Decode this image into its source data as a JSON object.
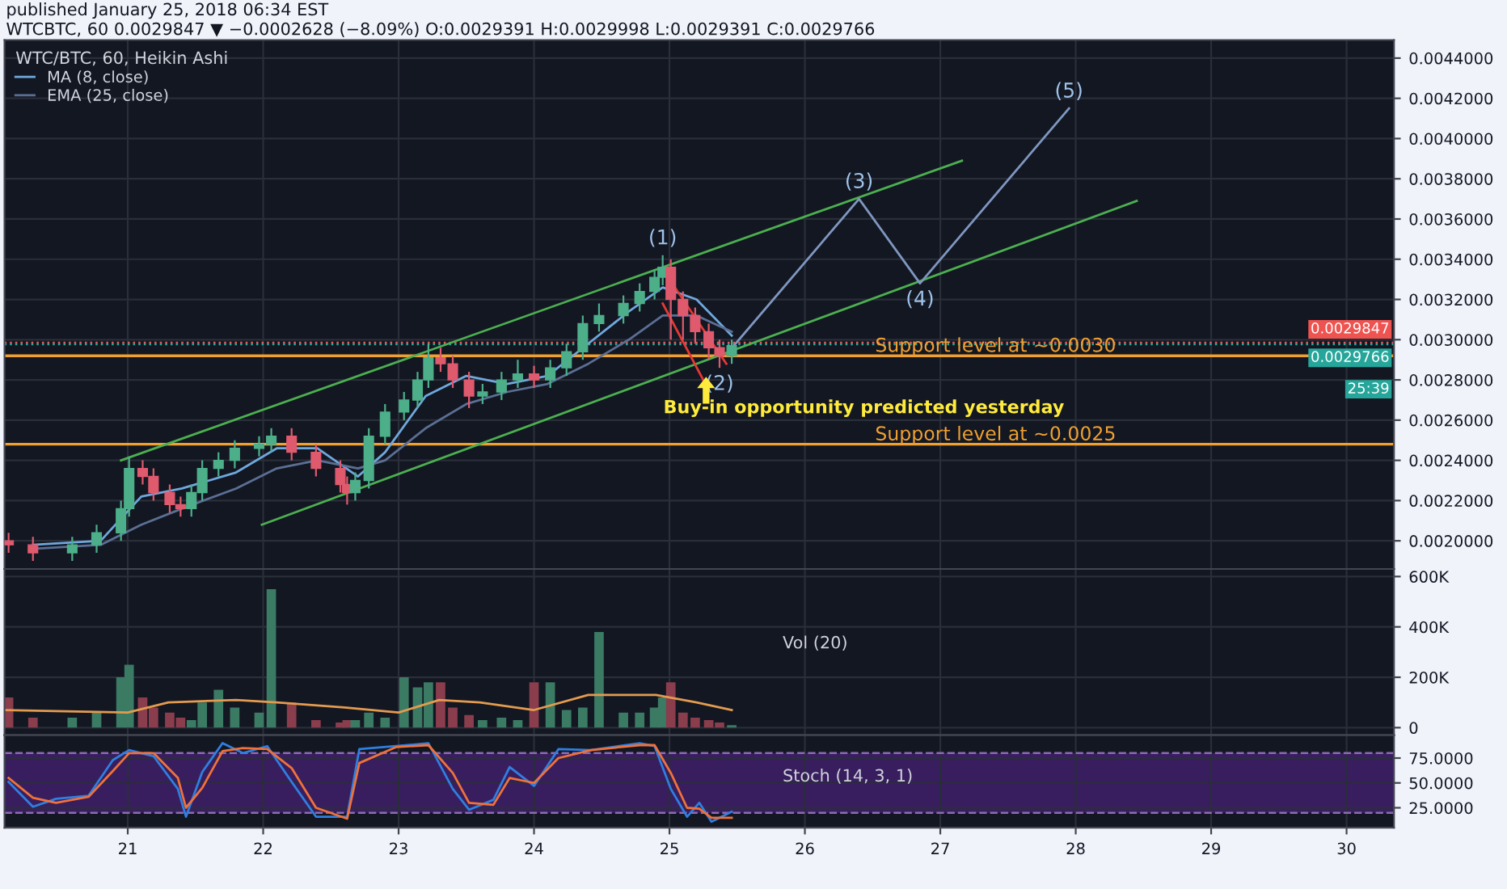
{
  "chart_data": [
    {
      "type": "candlestick",
      "title": "WTCBTC, 60 0.0029847 ▼ −0.0002628 (−8.09%) O:0.0029391 H:0.0029998 L:0.0029391 C:0.0029766",
      "subtitle": "published January 25, 2018 06:34 EST",
      "legend_title": "WTC/BTC, 60, Heikin Ashi",
      "legend": "top left",
      "grid": true,
      "tick_labels": "y",
      "xlim": [
        20.09,
        30.35
      ],
      "xticks": [
        21,
        22,
        23,
        24,
        25,
        26,
        27,
        28,
        29,
        30
      ],
      "ylim": [
        0.00186,
        0.00449
      ],
      "yticks": [
        {
          "value": 0.002,
          "label": "0.0020000"
        },
        {
          "value": 0.0022,
          "label": "0.0022000"
        },
        {
          "value": 0.0024,
          "label": "0.0024000"
        },
        {
          "value": 0.0026,
          "label": "0.0026000"
        },
        {
          "value": 0.0028,
          "label": "0.0028000"
        },
        {
          "value": 0.003,
          "label": "0.0030000"
        },
        {
          "value": 0.0032,
          "label": "0.0032000"
        },
        {
          "value": 0.0034,
          "label": "0.0034000"
        },
        {
          "value": 0.0036,
          "label": "0.0036000"
        },
        {
          "value": 0.0038,
          "label": "0.0038000"
        },
        {
          "value": 0.004,
          "label": "0.0040000"
        },
        {
          "value": 0.0042,
          "label": "0.0042000"
        },
        {
          "value": 0.0044,
          "label": "0.0044000"
        }
      ],
      "x": [
        20.12,
        20.3,
        20.59,
        20.77,
        20.95,
        21.01,
        21.11,
        21.19,
        21.31,
        21.39,
        21.47,
        21.55,
        21.67,
        21.79,
        21.97,
        22.06,
        22.21,
        22.39,
        22.57,
        22.62,
        22.68,
        22.78,
        22.9,
        23.04,
        23.14,
        23.22,
        23.31,
        23.4,
        23.52,
        23.62,
        23.76,
        23.88,
        24.0,
        24.12,
        24.24,
        24.36,
        24.48,
        24.66,
        24.78,
        24.89,
        24.95,
        25.01,
        25.1,
        25.19,
        25.29,
        25.37,
        25.46
      ],
      "ohlc": [
        [
          0.002,
          0.00204,
          0.00194,
          0.00198
        ],
        [
          0.00198,
          0.00202,
          0.0019,
          0.00194
        ],
        [
          0.00194,
          0.00202,
          0.0019,
          0.00198
        ],
        [
          0.00198,
          0.00208,
          0.00194,
          0.00204
        ],
        [
          0.00204,
          0.0022,
          0.002,
          0.00216
        ],
        [
          0.00216,
          0.00242,
          0.00212,
          0.00236
        ],
        [
          0.00236,
          0.0024,
          0.00228,
          0.00232
        ],
        [
          0.00232,
          0.00236,
          0.0022,
          0.00224
        ],
        [
          0.00224,
          0.00228,
          0.00214,
          0.00218
        ],
        [
          0.00218,
          0.00222,
          0.00212,
          0.00216
        ],
        [
          0.00216,
          0.00228,
          0.00212,
          0.00224
        ],
        [
          0.00224,
          0.0024,
          0.0022,
          0.00236
        ],
        [
          0.00236,
          0.00244,
          0.00232,
          0.0024
        ],
        [
          0.0024,
          0.0025,
          0.00236,
          0.00246
        ],
        [
          0.00246,
          0.00252,
          0.00242,
          0.00248
        ],
        [
          0.00248,
          0.00256,
          0.00244,
          0.00252
        ],
        [
          0.00252,
          0.00256,
          0.0024,
          0.00244
        ],
        [
          0.00244,
          0.00248,
          0.00232,
          0.00236
        ],
        [
          0.00236,
          0.0024,
          0.00224,
          0.00228
        ],
        [
          0.00228,
          0.00232,
          0.00218,
          0.00224
        ],
        [
          0.00224,
          0.00234,
          0.0022,
          0.0023
        ],
        [
          0.0023,
          0.00256,
          0.00226,
          0.00252
        ],
        [
          0.00252,
          0.00268,
          0.00248,
          0.00264
        ],
        [
          0.00264,
          0.00274,
          0.0026,
          0.0027
        ],
        [
          0.0027,
          0.00284,
          0.00266,
          0.0028
        ],
        [
          0.0028,
          0.00298,
          0.00276,
          0.00291
        ],
        [
          0.00291,
          0.00296,
          0.00284,
          0.00288
        ],
        [
          0.00288,
          0.00292,
          0.00276,
          0.0028
        ],
        [
          0.0028,
          0.00284,
          0.00266,
          0.00272
        ],
        [
          0.00272,
          0.00278,
          0.00268,
          0.00274
        ],
        [
          0.00274,
          0.00284,
          0.0027,
          0.0028
        ],
        [
          0.0028,
          0.0029,
          0.00276,
          0.00283
        ],
        [
          0.00283,
          0.00287,
          0.00276,
          0.0028
        ],
        [
          0.0028,
          0.0029,
          0.00276,
          0.00286
        ],
        [
          0.00286,
          0.00298,
          0.00282,
          0.00294
        ],
        [
          0.00294,
          0.00312,
          0.0029,
          0.00308
        ],
        [
          0.00308,
          0.00318,
          0.00304,
          0.00312
        ],
        [
          0.00312,
          0.00322,
          0.00308,
          0.00318
        ],
        [
          0.00318,
          0.00328,
          0.00314,
          0.00324
        ],
        [
          0.00324,
          0.00335,
          0.0032,
          0.00331
        ],
        [
          0.00331,
          0.00342,
          0.00327,
          0.00336
        ],
        [
          0.00336,
          0.0034,
          0.003,
          0.0032
        ],
        [
          0.0032,
          0.00324,
          0.003,
          0.00312
        ],
        [
          0.00312,
          0.00316,
          0.00298,
          0.00304
        ],
        [
          0.00304,
          0.00308,
          0.0029,
          0.00296
        ],
        [
          0.00296,
          0.003,
          0.00286,
          0.00292
        ],
        [
          0.00292,
          0.003,
          0.00288,
          0.00297
        ]
      ],
      "colors": [
        "#e05a6e",
        "#e05a6e",
        "#4caf89",
        "#4caf89",
        "#4caf89",
        "#4caf89",
        "#e05a6e",
        "#e05a6e",
        "#e05a6e",
        "#e05a6e",
        "#4caf89",
        "#4caf89",
        "#4caf89",
        "#4caf89",
        "#4caf89",
        "#4caf89",
        "#e05a6e",
        "#e05a6e",
        "#e05a6e",
        "#e05a6e",
        "#4caf89",
        "#4caf89",
        "#4caf89",
        "#4caf89",
        "#4caf89",
        "#4caf89",
        "#e05a6e",
        "#e05a6e",
        "#e05a6e",
        "#4caf89",
        "#4caf89",
        "#4caf89",
        "#e05a6e",
        "#4caf89",
        "#4caf89",
        "#4caf89",
        "#4caf89",
        "#4caf89",
        "#4caf89",
        "#4caf89",
        "#4caf89",
        "#e05a6e",
        "#e05a6e",
        "#e05a6e",
        "#e05a6e",
        "#e05a6e",
        "#4caf89"
      ],
      "series": [
        {
          "type": "line",
          "name": "MA (8, close)",
          "color": "#6fa8dc",
          "x": [
            20.3,
            20.8,
            21.1,
            21.4,
            21.8,
            22.1,
            22.4,
            22.7,
            22.9,
            23.2,
            23.5,
            23.8,
            24.1,
            24.4,
            24.7,
            24.95,
            25.2,
            25.46
          ],
          "values": [
            0.00198,
            0.002,
            0.00222,
            0.00226,
            0.00234,
            0.00246,
            0.00246,
            0.00232,
            0.00244,
            0.00272,
            0.00282,
            0.00278,
            0.00282,
            0.00298,
            0.00314,
            0.00326,
            0.0032,
            0.00302
          ]
        },
        {
          "type": "line",
          "name": "EMA (25, close)",
          "color": "#5b6f94",
          "x": [
            20.3,
            20.8,
            21.1,
            21.4,
            21.8,
            22.1,
            22.4,
            22.7,
            22.9,
            23.2,
            23.5,
            23.8,
            24.1,
            24.4,
            24.7,
            24.95,
            25.2,
            25.46
          ],
          "values": [
            0.00196,
            0.00198,
            0.00208,
            0.00216,
            0.00226,
            0.00236,
            0.0024,
            0.00236,
            0.0024,
            0.00256,
            0.00268,
            0.00274,
            0.00278,
            0.00288,
            0.003,
            0.00312,
            0.00312,
            0.00304
          ]
        },
        {
          "type": "line",
          "color": "#4caf50",
          "x": [
            20.95,
            27.16
          ],
          "values": [
            0.0024,
            0.00389
          ]
        },
        {
          "type": "line",
          "color": "#4caf50",
          "x": [
            21.99,
            28.45
          ],
          "values": [
            0.00208,
            0.00369
          ]
        },
        {
          "type": "line",
          "color": "#e53935",
          "x": [
            24.96,
            25.42
          ],
          "values": [
            0.00334,
            0.00288
          ]
        },
        {
          "type": "line",
          "color": "#e53935",
          "x": [
            24.95,
            25.25
          ],
          "values": [
            0.00318,
            0.0028
          ]
        },
        {
          "type": "line",
          "color": "#7f97c0",
          "x": [
            25.45,
            26.4,
            26.85,
            27.95
          ],
          "values": [
            0.00295,
            0.0037,
            0.00328,
            0.00415
          ]
        }
      ],
      "ref_lines": [
        {
          "axis": "y",
          "value": 0.00292,
          "label": "Support level at ~0.0030",
          "color": "#f0a030",
          "line_style": "solid"
        },
        {
          "axis": "y",
          "value": 0.00248,
          "label": "Support level at ~0.0025",
          "color": "#f0a030",
          "line_style": "solid"
        },
        {
          "axis": "y",
          "value": 0.0029847,
          "label": "0.0029847",
          "color": "#ef5350",
          "line_style": "dotted"
        },
        {
          "axis": "y",
          "value": 0.0029766,
          "label": "0.0029766",
          "color": "#26a69a",
          "line_style": "dotted"
        }
      ],
      "annotations": [
        {
          "text": "(1)",
          "x": 24.95,
          "y": 0.00342
        },
        {
          "text": "(2)",
          "x": 25.37,
          "y": 0.00286
        },
        {
          "text": "(3)",
          "x": 26.4,
          "y": 0.0037
        },
        {
          "text": "(4)",
          "x": 26.85,
          "y": 0.00328
        },
        {
          "text": "(5)",
          "x": 27.95,
          "y": 0.00415
        },
        "Buy-in opportunity predicted yesterday",
        "25:39"
      ]
    },
    {
      "type": "bar",
      "title": "Vol (20)",
      "grid": true,
      "tick_labels": "y",
      "xlim": [
        20.09,
        30.35
      ],
      "xticks": [
        21,
        22,
        23,
        24,
        25,
        26,
        27,
        28,
        29,
        30
      ],
      "ylim": [
        -30000,
        630000
      ],
      "yticks": [
        0,
        {
          "value": 200000,
          "label": "200K"
        },
        {
          "value": 400000,
          "label": "400K"
        },
        {
          "value": 600000,
          "label": "600K"
        }
      ],
      "series": [
        {
          "type": "bar",
          "x": [
            20.12,
            20.3,
            20.59,
            20.77,
            20.95,
            21.01,
            21.11,
            21.19,
            21.31,
            21.39,
            21.47,
            21.55,
            21.67,
            21.79,
            21.97,
            22.06,
            22.21,
            22.39,
            22.57,
            22.62,
            22.68,
            22.78,
            22.9,
            23.04,
            23.14,
            23.22,
            23.31,
            23.4,
            23.52,
            23.62,
            23.76,
            23.88,
            24.0,
            24.12,
            24.24,
            24.36,
            24.48,
            24.66,
            24.78,
            24.89,
            24.95,
            25.01,
            25.1,
            25.19,
            25.29,
            25.37,
            25.46
          ],
          "values": [
            120000,
            40000,
            40000,
            60000,
            200000,
            250000,
            120000,
            80000,
            60000,
            40000,
            30000,
            100000,
            150000,
            80000,
            60000,
            550000,
            100000,
            30000,
            20000,
            30000,
            30000,
            60000,
            40000,
            200000,
            160000,
            180000,
            180000,
            80000,
            50000,
            30000,
            40000,
            30000,
            180000,
            180000,
            70000,
            80000,
            380000,
            60000,
            60000,
            80000,
            120000,
            180000,
            60000,
            40000,
            30000,
            20000,
            10000
          ],
          "colors": [
            "#8a3d4c",
            "#8a3d4c",
            "#3b7a63",
            "#3b7a63",
            "#3b7a63",
            "#3b7a63",
            "#8a3d4c",
            "#8a3d4c",
            "#8a3d4c",
            "#8a3d4c",
            "#3b7a63",
            "#3b7a63",
            "#3b7a63",
            "#3b7a63",
            "#3b7a63",
            "#3b7a63",
            "#8a3d4c",
            "#8a3d4c",
            "#8a3d4c",
            "#8a3d4c",
            "#3b7a63",
            "#3b7a63",
            "#3b7a63",
            "#3b7a63",
            "#3b7a63",
            "#3b7a63",
            "#8a3d4c",
            "#8a3d4c",
            "#8a3d4c",
            "#3b7a63",
            "#3b7a63",
            "#3b7a63",
            "#8a3d4c",
            "#3b7a63",
            "#3b7a63",
            "#3b7a63",
            "#3b7a63",
            "#3b7a63",
            "#3b7a63",
            "#3b7a63",
            "#3b7a63",
            "#8a3d4c",
            "#8a3d4c",
            "#8a3d4c",
            "#8a3d4c",
            "#8a3d4c",
            "#3b7a63"
          ]
        },
        {
          "type": "line",
          "color": "#e39b4f",
          "x": [
            20.1,
            21.0,
            21.3,
            21.8,
            22.1,
            22.6,
            23.0,
            23.3,
            23.6,
            24.0,
            24.4,
            24.9,
            25.2,
            25.46
          ],
          "values": [
            70000,
            60000,
            100000,
            110000,
            100000,
            80000,
            60000,
            110000,
            100000,
            70000,
            130000,
            130000,
            100000,
            70000
          ]
        }
      ]
    },
    {
      "type": "line",
      "title": "Stoch (14, 3, 1)",
      "grid": true,
      "xlim": [
        20.09,
        30.35
      ],
      "xticks": [
        21,
        22,
        23,
        24,
        25,
        26,
        27,
        28,
        29,
        30
      ],
      "ylim": [
        5,
        98
      ],
      "yticks": [
        {
          "value": 25,
          "label": "25.0000"
        },
        {
          "value": 50,
          "label": "50.0000"
        },
        {
          "value": 75,
          "label": "75.0000"
        }
      ],
      "bands": [
        {
          "axis": "y",
          "from": 20,
          "to": 80,
          "color": "#3d1f66"
        }
      ],
      "ref_lines": [
        {
          "axis": "y",
          "value": 20,
          "color": "#8c6bb1",
          "line_style": "dashed"
        },
        {
          "axis": "y",
          "value": 80,
          "color": "#8c6bb1",
          "line_style": "dashed"
        }
      ],
      "series": [
        {
          "color": "#2f7fe0",
          "x": [
            20.12,
            20.3,
            20.47,
            20.71,
            20.89,
            21.01,
            21.19,
            21.37,
            21.43,
            21.55,
            21.7,
            21.85,
            22.03,
            22.21,
            22.39,
            22.62,
            22.71,
            22.98,
            23.22,
            23.4,
            23.52,
            23.7,
            23.82,
            24.0,
            24.18,
            24.42,
            24.78,
            24.89,
            25.01,
            25.13,
            25.22,
            25.31,
            25.46
          ],
          "values": [
            51,
            26,
            34,
            37,
            73,
            83,
            77,
            44,
            16,
            61,
            90,
            80,
            87,
            51,
            16,
            16,
            84,
            87,
            90,
            44,
            23,
            33,
            66,
            47,
            84,
            83,
            90,
            87,
            44,
            16,
            30,
            11,
            21
          ]
        },
        {
          "color": "#f0713a",
          "x": [
            20.12,
            20.3,
            20.47,
            20.71,
            20.89,
            21.01,
            21.19,
            21.37,
            21.43,
            21.55,
            21.7,
            21.85,
            22.03,
            22.21,
            22.39,
            22.62,
            22.71,
            22.98,
            23.22,
            23.4,
            23.52,
            23.7,
            23.82,
            24.0,
            24.18,
            24.42,
            24.78,
            24.89,
            25.01,
            25.13,
            25.22,
            25.31,
            25.46
          ],
          "values": [
            55,
            35,
            30,
            36,
            62,
            80,
            80,
            55,
            25,
            45,
            82,
            85,
            84,
            65,
            25,
            14,
            70,
            86,
            88,
            60,
            30,
            28,
            55,
            50,
            75,
            83,
            88,
            88,
            60,
            25,
            24,
            15,
            15
          ]
        }
      ]
    }
  ]
}
